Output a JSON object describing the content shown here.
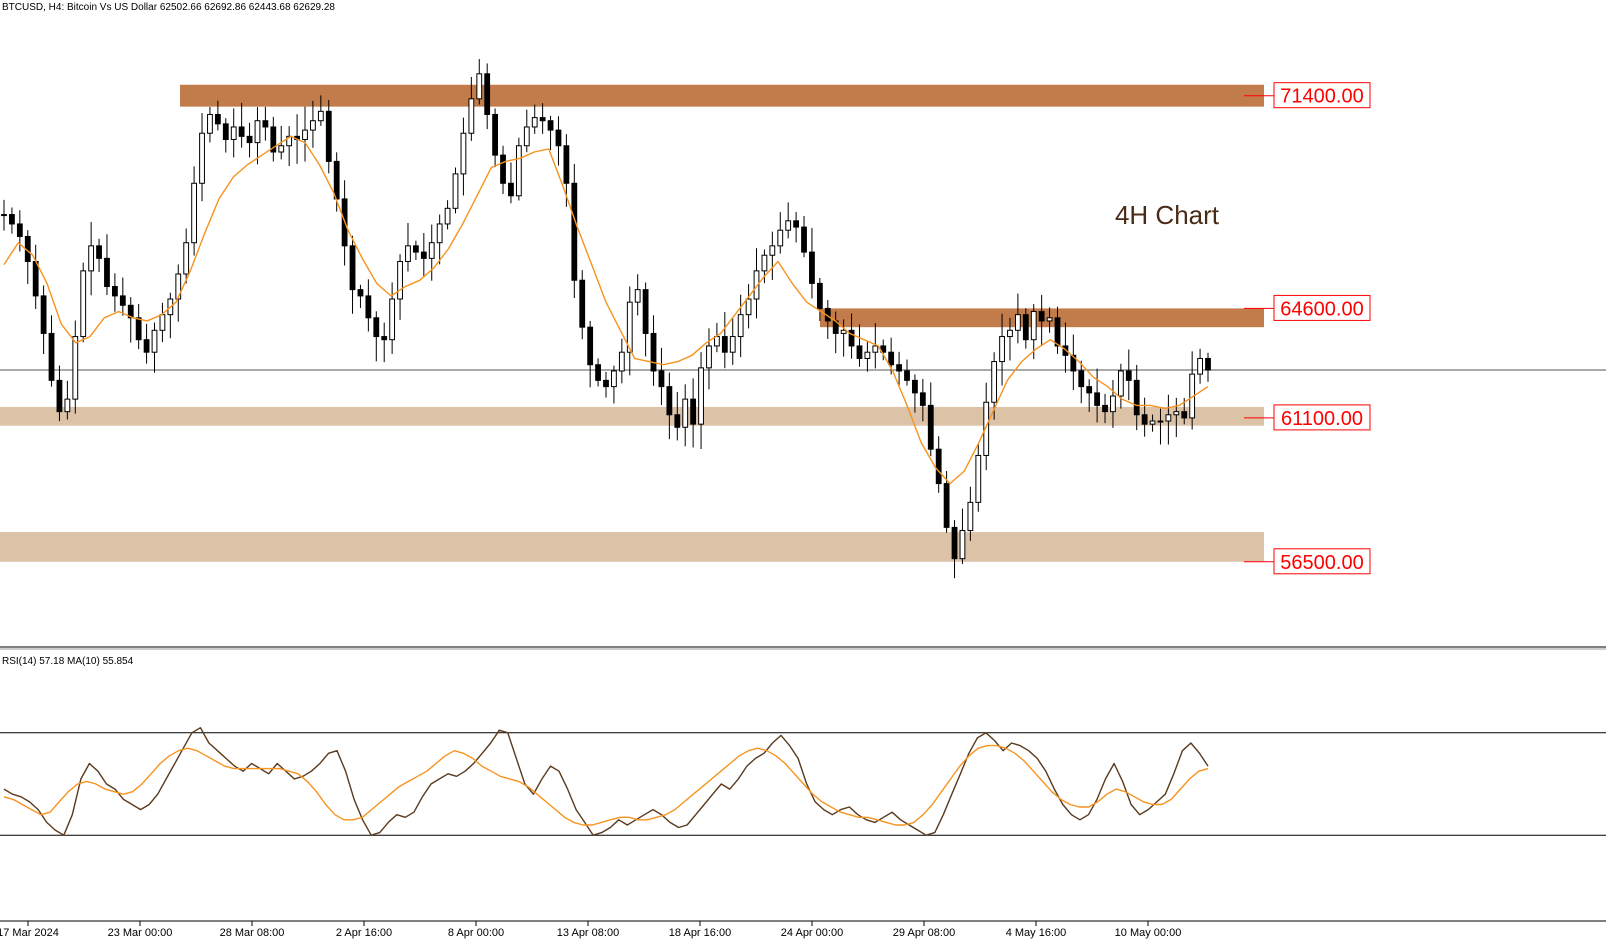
{
  "header": {
    "symbol_line": "BTCUSD, H4:  Bitcoin Vs US Dollar  62502.66 62692.86 62443.68 62629.28"
  },
  "annotation": {
    "text": "4H Chart"
  },
  "rsi_panel": {
    "label": "RSI(14) 57.18 MA(10) 55.854"
  },
  "colors": {
    "resistance_zone": "#C27C4B",
    "support_zone": "#DCC3A8",
    "ma_line": "#F7931E",
    "candle": "#000000",
    "rsi_line": "#5A3A1E",
    "label_text": "#FF0000"
  },
  "chart_data": [
    {
      "type": "candlestick",
      "title": "",
      "x_ticks": [
        "17 Mar 2024",
        "23 Mar 00:00",
        "28 Mar 08:00",
        "2 Apr 16:00",
        "8 Apr 00:00",
        "13 Apr 08:00",
        "18 Apr 16:00",
        "24 Apr 00:00",
        "29 Apr 08:00",
        "4 May 16:00",
        "10 May 00:00"
      ],
      "ylim": [
        54000,
        73500
      ],
      "current_price": 62629.28,
      "levels": [
        {
          "label": "71400.00",
          "value": 71400,
          "band": [
            71050,
            71750
          ],
          "kind": "resistance"
        },
        {
          "label": "64600.00",
          "value": 64600,
          "band": [
            64000,
            64600
          ],
          "kind": "resistance"
        },
        {
          "label": "61100.00",
          "value": 61100,
          "band": [
            60850,
            61450
          ],
          "kind": "support"
        },
        {
          "label": "56500.00",
          "value": 56500,
          "band": [
            56500,
            57450
          ],
          "kind": "support"
        }
      ],
      "series": [
        {
          "name": "close",
          "values": [
            67600,
            67300,
            66900,
            66100,
            65000,
            63800,
            62300,
            61300,
            61700,
            63700,
            65800,
            66600,
            66200,
            65300,
            65000,
            64700,
            64300,
            63600,
            63200,
            63900,
            64400,
            64900,
            65700,
            66700,
            68600,
            70200,
            70800,
            70500,
            70000,
            70400,
            70100,
            69900,
            70600,
            70400,
            69600,
            69800,
            70100,
            70000,
            70300,
            70600,
            70900,
            69300,
            68100,
            66600,
            65200,
            65000,
            64300,
            63700,
            63600,
            64900,
            66100,
            66600,
            66400,
            66200,
            66700,
            67300,
            67800,
            68900,
            70200,
            71300,
            72100,
            70800,
            69500,
            68600,
            68200,
            69800,
            70400,
            70700,
            70600,
            70300,
            69800,
            68600,
            65500,
            64000,
            62800,
            62300,
            62100,
            62600,
            63200,
            64800,
            65200,
            63800,
            62600,
            62100,
            61200,
            60800,
            61700,
            60900,
            62700,
            63400,
            63700,
            63200,
            63700,
            64400,
            64900,
            65800,
            66300,
            66600,
            67100,
            67400,
            67200,
            66400,
            65400,
            64600,
            64200,
            63800,
            63900,
            63400,
            63000,
            63200,
            63400,
            63200,
            62800,
            62600,
            62300,
            61900,
            61500,
            60100,
            59000,
            57600,
            56600,
            57500,
            58400,
            59900,
            61600,
            62900,
            63700,
            63900,
            64400,
            63600,
            64500,
            64200,
            64300,
            63400,
            63100,
            62600,
            62100,
            61900,
            61500,
            61300,
            61800,
            62600,
            62300,
            61200,
            60900,
            61000,
            61000,
            61200,
            61300,
            61100,
            62500,
            63000,
            62629
          ]
        },
        {
          "name": "MA",
          "values": [
            66000,
            66700,
            66300,
            65400,
            64100,
            63500,
            63700,
            64300,
            64500,
            64300,
            64200,
            64400,
            64800,
            65800,
            67000,
            68100,
            68800,
            69200,
            69500,
            69800,
            70100,
            69900,
            69200,
            68300,
            67100,
            66200,
            65400,
            65000,
            65300,
            65500,
            65900,
            66500,
            67300,
            68200,
            69100,
            69300,
            69400,
            69600,
            69700,
            68500,
            67200,
            66000,
            64800,
            63900,
            63000,
            62900,
            62800,
            62900,
            63100,
            63500,
            63800,
            64400,
            65000,
            65600,
            66100,
            65400,
            64800,
            64500,
            64200,
            63800,
            63600,
            63400,
            62600,
            61500,
            60300,
            59500,
            59000,
            59400,
            60300,
            61300,
            62300,
            62900,
            63300,
            63600,
            63300,
            62900,
            62400,
            62100,
            61700,
            61500,
            61500,
            61400,
            61500,
            61800,
            62100
          ]
        }
      ]
    },
    {
      "type": "line",
      "title": "",
      "ylim": [
        0,
        100
      ],
      "levels": [
        70,
        30
      ],
      "series": [
        {
          "name": "RSI",
          "values": [
            48,
            46,
            45,
            43,
            40,
            35,
            32,
            30,
            38,
            52,
            58,
            55,
            50,
            48,
            44,
            42,
            40,
            42,
            46,
            52,
            58,
            64,
            70,
            72,
            66,
            63,
            60,
            57,
            55,
            58,
            56,
            54,
            58,
            55,
            52,
            53,
            55,
            58,
            62,
            63,
            55,
            44,
            36,
            30,
            31,
            35,
            38,
            37,
            39,
            45,
            50,
            52,
            54,
            53,
            55,
            58,
            62,
            66,
            71,
            70,
            60,
            50,
            46,
            52,
            57,
            55,
            48,
            40,
            35,
            30,
            31,
            33,
            36,
            34,
            36,
            38,
            40,
            38,
            35,
            33,
            34,
            38,
            42,
            46,
            50,
            48,
            52,
            57,
            60,
            62,
            66,
            69,
            65,
            60,
            50,
            43,
            40,
            38,
            40,
            41,
            38,
            36,
            35,
            37,
            39,
            36,
            34,
            32,
            30,
            31,
            38,
            46,
            54,
            62,
            68,
            70,
            67,
            63,
            66,
            65,
            63,
            60,
            55,
            48,
            42,
            38,
            36,
            38,
            44,
            52,
            58,
            51,
            42,
            38,
            40,
            43,
            46,
            54,
            63,
            66,
            62,
            57
          ]
        },
        {
          "name": "MA",
          "values": [
            45,
            44,
            42,
            40,
            38,
            39,
            43,
            47,
            50,
            51,
            50,
            48,
            47,
            46,
            47,
            50,
            54,
            58,
            61,
            63,
            64,
            63,
            61,
            59,
            57,
            56,
            56,
            56,
            56,
            56,
            56,
            55,
            54,
            51,
            47,
            42,
            38,
            36,
            36,
            37,
            40,
            43,
            46,
            49,
            51,
            53,
            55,
            58,
            61,
            63,
            62,
            60,
            57,
            55,
            53,
            52,
            51,
            49,
            46,
            43,
            40,
            37,
            35,
            34,
            34,
            35,
            36,
            37,
            37,
            36,
            36,
            37,
            38,
            40,
            43,
            46,
            49,
            52,
            55,
            58,
            61,
            63,
            64,
            63,
            61,
            58,
            54,
            50,
            46,
            43,
            41,
            39,
            38,
            37,
            37,
            36,
            35,
            34,
            34,
            35,
            38,
            42,
            47,
            52,
            57,
            61,
            64,
            65,
            65,
            64,
            62,
            59,
            55,
            51,
            47,
            44,
            42,
            41,
            41,
            43,
            46,
            48,
            47,
            45,
            43,
            42,
            42,
            44,
            48,
            52,
            55,
            56
          ]
        }
      ]
    }
  ]
}
